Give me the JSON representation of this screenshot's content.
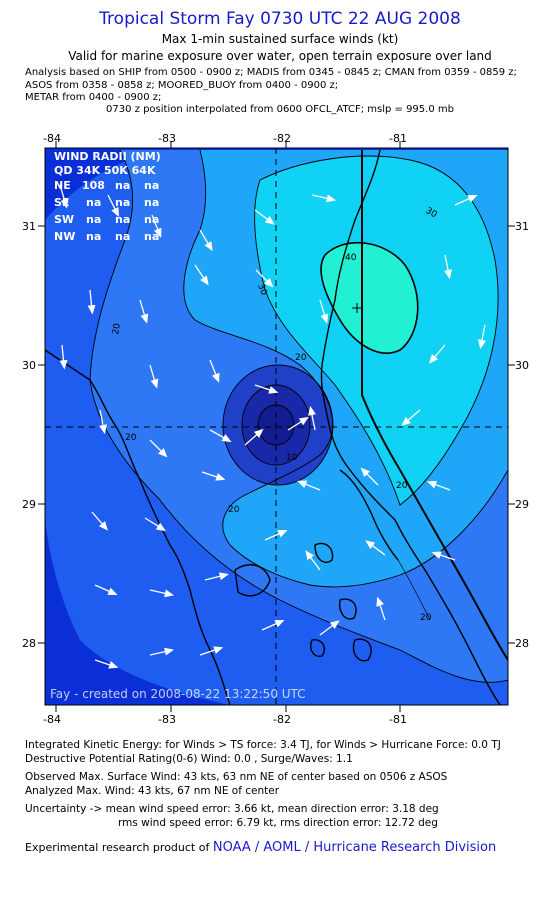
{
  "header": {
    "title": "Tropical Storm Fay 0730 UTC 22 AUG 2008",
    "subtitle": "Max 1-min sustained surface winds (kt)",
    "valid_line": "Valid for marine exposure over water, open terrain exposure over land",
    "analysis_line1": "Analysis based on  SHIP from 0500 - 0900 z;  MADIS from 0345 - 0845 z;  CMAN from 0359 - 0859 z;",
    "analysis_line2": "ASOS from 0358 - 0858 z;  MOORED_BUOY from 0400 - 0900 z;",
    "analysis_line3": "METAR from 0400 - 0900 z;",
    "center_line": "0730 z position interpolated from 0600 OFCL_ATCF; mslp = 995.0 mb"
  },
  "map": {
    "lon_ticks": [
      "-84",
      "-83",
      "-82",
      "-81"
    ],
    "lat_ticks": [
      "31",
      "30",
      "29",
      "28"
    ],
    "wind_radii": {
      "header": "WIND RADII (NM)",
      "columns": "QD 34K 50K 64K",
      "rows": [
        {
          "quadrant": "NE",
          "r34": "108",
          "r50": "na",
          "r64": "na"
        },
        {
          "quadrant": "SE",
          "r34": "na",
          "r50": "na",
          "r64": "na"
        },
        {
          "quadrant": "SW",
          "r34": "na",
          "r50": "na",
          "r64": "na"
        },
        {
          "quadrant": "NW",
          "r34": "na",
          "r50": "na",
          "r64": "na"
        }
      ]
    },
    "contour_labels": [
      "40",
      "30",
      "30",
      "20",
      "20",
      "20",
      "20",
      "20",
      "20",
      "10"
    ],
    "created_line": "Fay - created on 2008-08-22 13:22:50 UTC",
    "colors": {
      "deep": "#0a2fd6",
      "low": "#1f5cf0",
      "mid": "#2e78f6",
      "high": "#1fa6f8",
      "higher": "#10d2f4",
      "max": "#22f0d4",
      "core1": "#2040c8",
      "core2": "#1828a8",
      "core3": "#101c90"
    }
  },
  "footer": {
    "ike": "Integrated Kinetic Energy:  for Winds > TS force: 3.4 TJ,  for Winds > Hurricane Force: 0.0 TJ",
    "dpr": "Destructive Potential Rating(0-6)   Wind: 0.0 , Surge/Waves: 1.1",
    "obs_max": "Observed Max. Surface Wind: 43 kts, 63 nm NE of center based on 0506 z ASOS",
    "ana_max": "Analyzed Max. Wind: 43 kts, 67 nm NE of center",
    "unc1": "Uncertainty -> mean wind speed error: 3.66 kt,   mean direction error: 3.18 deg",
    "unc2": "rms wind speed error: 6.79 kt,   rms direction error: 12.72 deg",
    "product_prefix": "Experimental research product of",
    "product_org": "NOAA / AOML / Hurricane Research Division"
  }
}
